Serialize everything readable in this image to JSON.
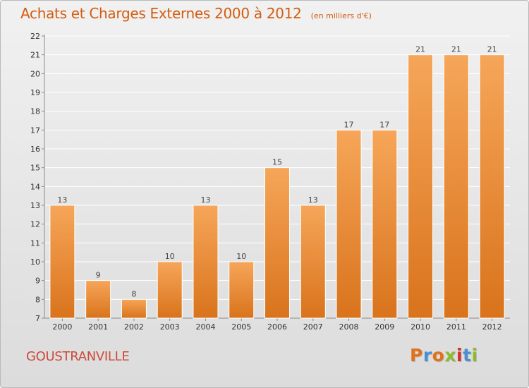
{
  "header": {
    "title": "Achats et Charges Externes 2000 à 2012",
    "unit_note": "(en milliers d'€)"
  },
  "footer": {
    "place": "GOUSTRANVILLE",
    "brand": "Proxiti"
  },
  "colors": {
    "title": "#d35c0f",
    "place": "#cc4a3a",
    "bar_top": "#f6a659",
    "bar_bottom": "#d9731c",
    "brand_letters": [
      "#e2711b",
      "#4a8fd1",
      "#e2711b",
      "#8dbb2f",
      "#d22e2e",
      "#4a8fd1",
      "#8dbb2f"
    ]
  },
  "chart_data": {
    "type": "bar",
    "title": "Achats et Charges Externes 2000 à 2012",
    "subtitle": "(en milliers d'€)",
    "xlabel": "",
    "ylabel": "",
    "categories": [
      "2000",
      "2001",
      "2002",
      "2003",
      "2004",
      "2005",
      "2006",
      "2007",
      "2008",
      "2009",
      "2010",
      "2011",
      "2012"
    ],
    "values": [
      13,
      9,
      8,
      10,
      13,
      10,
      15,
      13,
      17,
      17,
      21,
      21,
      21
    ],
    "data_labels": [
      "13",
      "9",
      "8",
      "10",
      "13",
      "10",
      "15",
      "13",
      "17",
      "17",
      "21",
      "21",
      "21"
    ],
    "ylim": [
      7,
      22
    ],
    "yticks": [
      7,
      8,
      9,
      10,
      11,
      12,
      13,
      14,
      15,
      16,
      17,
      18,
      19,
      20,
      21,
      22
    ],
    "grid": true
  }
}
